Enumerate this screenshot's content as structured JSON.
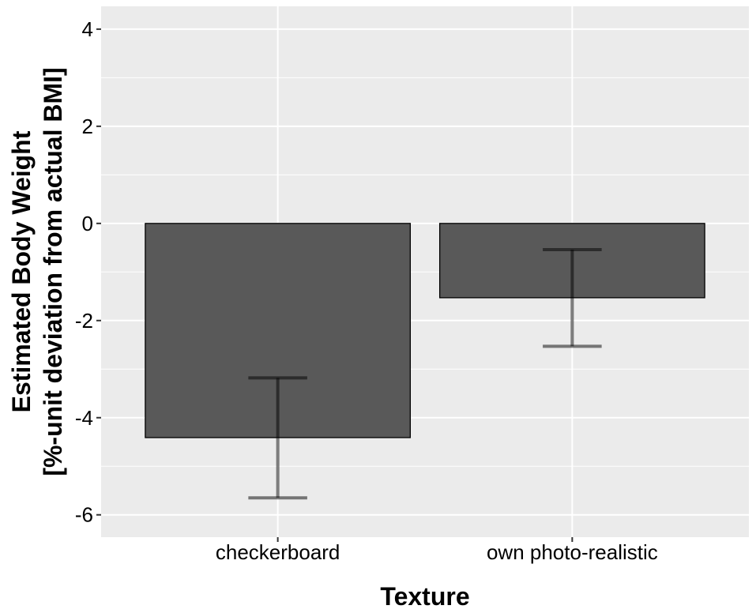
{
  "chart_data": {
    "type": "bar",
    "title": "",
    "xlabel": "Texture",
    "ylabel_lines": [
      "Estimated Body Weight",
      "[%-unit deviation from actual BMI]"
    ],
    "categories": [
      "checkerboard",
      "own photo-realistic"
    ],
    "values": [
      -4.41,
      -1.53
    ],
    "error_bars": [
      {
        "upper": -3.18,
        "lower": -5.65
      },
      {
        "upper": -0.54,
        "lower": -2.53
      }
    ],
    "ylim": [
      -6.46,
      4.47
    ],
    "yticks": [
      -6,
      -4,
      -2,
      0,
      2,
      4
    ],
    "ytick_labels": [
      "-6",
      "-4",
      "-2",
      "0",
      "2",
      "4"
    ],
    "grid": true,
    "colors": {
      "bar": "#595959",
      "panel": "#EBEBEB",
      "grid": "#FFFFFF",
      "error_bar": "#000000"
    }
  }
}
